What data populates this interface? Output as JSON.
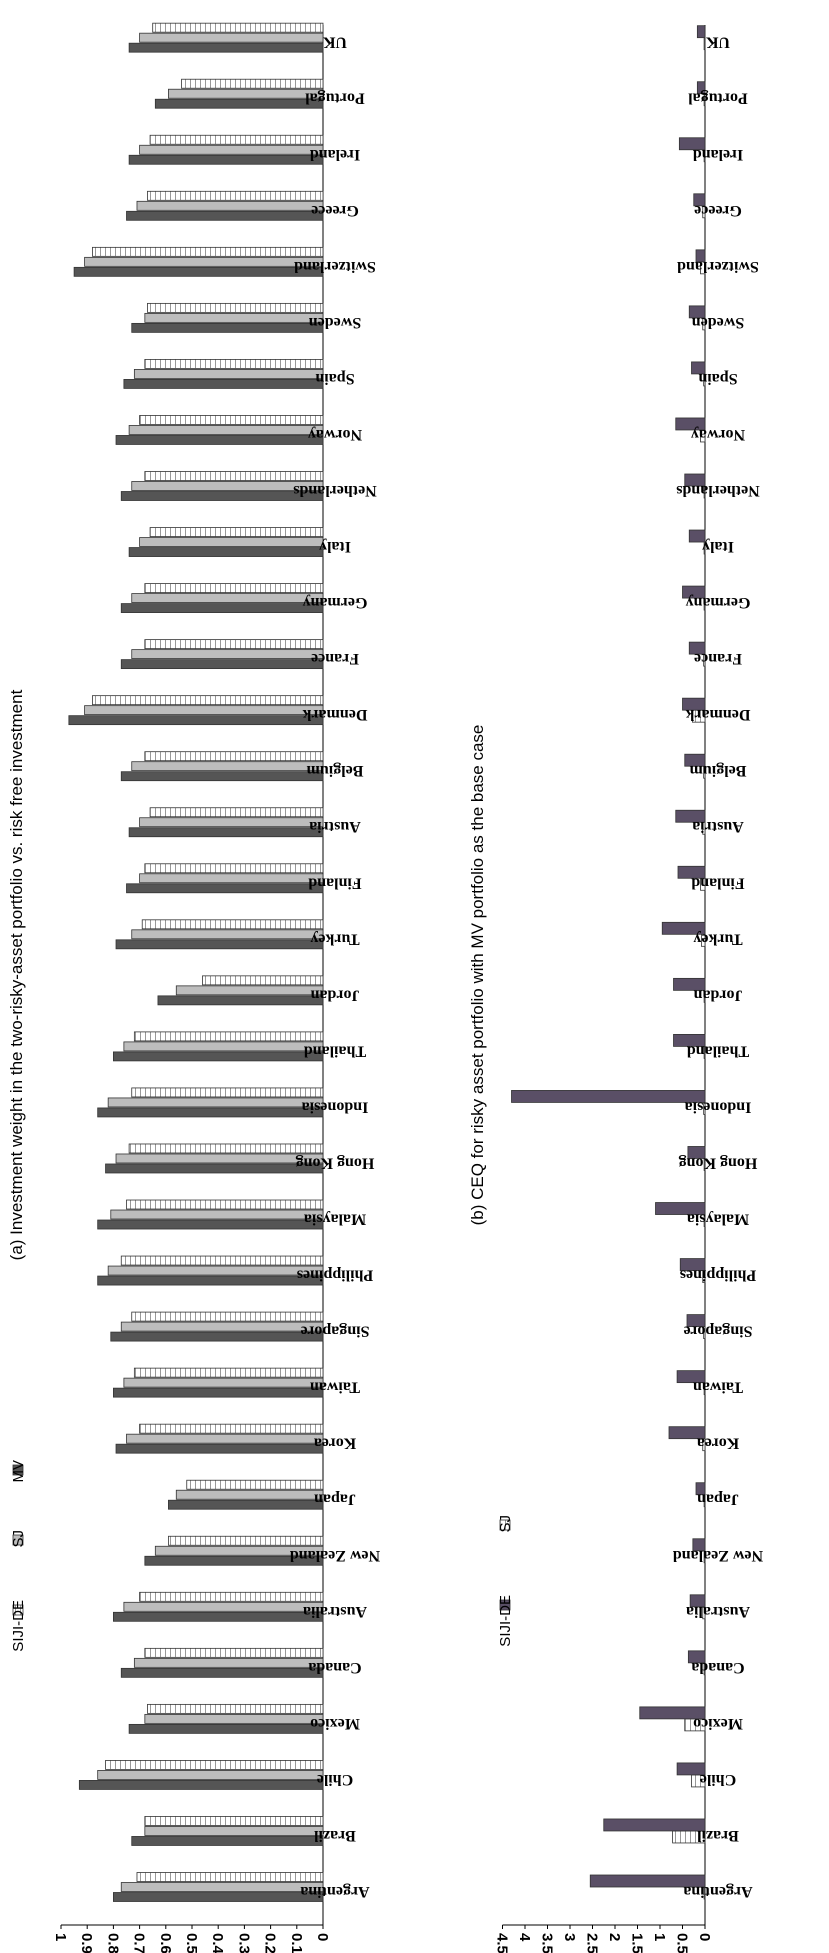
{
  "chart_data": [
    {
      "type": "bar",
      "orientation": "horizontal",
      "rotation": "figure rotated 90 degrees clockwise",
      "title": "(a) Investment weight in the two-risky-asset portfolio vs. risk free investment",
      "xlabel": "",
      "ylabel": "",
      "ylim": [
        0,
        1
      ],
      "yticks": [
        "0",
        "0.1",
        "0.2",
        "0.3",
        "0.4",
        "0.5",
        "0.6",
        "0.7",
        "0.8",
        "0.9",
        "1"
      ],
      "grid": false,
      "legend_position": "top-left",
      "categories": [
        "Argentina",
        "Brazil",
        "Chile",
        "Mexico",
        "Canada",
        "Australia",
        "New Zealand",
        "Japan",
        "Korea",
        "Taiwan",
        "Singapore",
        "Philippines",
        "Malaysia",
        "Hong Kong",
        "Indonesia",
        "Thailand",
        "Jordan",
        "Turkey",
        "Finland",
        "Austria",
        "Belgium",
        "Denmark",
        "France",
        "Germany",
        "Italy",
        "Netherlands",
        "Norway",
        "Spain",
        "Sweden",
        "Switzerland",
        "Greece",
        "Ireland",
        "Portugal",
        "UK"
      ],
      "series": [
        {
          "name": "MV",
          "color": "#555555",
          "pattern": "solid",
          "values": [
            0.8,
            0.73,
            0.93,
            0.74,
            0.77,
            0.8,
            0.68,
            0.59,
            0.79,
            0.8,
            0.81,
            0.86,
            0.86,
            0.83,
            0.86,
            0.8,
            0.63,
            0.79,
            0.75,
            0.74,
            0.77,
            0.97,
            0.77,
            0.77,
            0.74,
            0.77,
            0.79,
            0.76,
            0.73,
            0.95,
            0.75,
            0.74,
            0.64,
            0.74
          ]
        },
        {
          "name": "SJ",
          "color": "#bdbdbd",
          "pattern": "solid",
          "values": [
            0.77,
            0.68,
            0.86,
            0.68,
            0.72,
            0.76,
            0.64,
            0.56,
            0.75,
            0.76,
            0.77,
            0.82,
            0.81,
            0.79,
            0.82,
            0.76,
            0.56,
            0.73,
            0.7,
            0.7,
            0.73,
            0.91,
            0.73,
            0.73,
            0.7,
            0.73,
            0.74,
            0.72,
            0.68,
            0.91,
            0.71,
            0.7,
            0.59,
            0.7
          ]
        },
        {
          "name": "SIJI-DE",
          "color": "#ffffff",
          "pattern": "hatched",
          "values": [
            0.71,
            0.68,
            0.83,
            0.67,
            0.68,
            0.7,
            0.59,
            0.52,
            0.7,
            0.72,
            0.73,
            0.77,
            0.75,
            0.74,
            0.73,
            0.72,
            0.46,
            0.69,
            0.68,
            0.66,
            0.68,
            0.88,
            0.68,
            0.68,
            0.66,
            0.68,
            0.7,
            0.68,
            0.67,
            0.88,
            0.67,
            0.66,
            0.54,
            0.65
          ]
        }
      ]
    },
    {
      "type": "bar",
      "orientation": "horizontal",
      "rotation": "figure rotated 90 degrees clockwise",
      "title": "(b) CEQ for risky asset portfolio with MV portfolio as the base case",
      "xlabel": "",
      "ylabel": "",
      "ylim": [
        0,
        4.5
      ],
      "yticks": [
        "0",
        "0.5",
        "1",
        "1.5",
        "2",
        "2.5",
        "3",
        "3.5",
        "4",
        "4.5"
      ],
      "grid": false,
      "legend_position": "top-left",
      "categories": [
        "Argentina",
        "Brazil",
        "Chile",
        "Mexico",
        "Canada",
        "Australia",
        "New Zealand",
        "Japan",
        "Korea",
        "Taiwan",
        "Singapore",
        "Philippines",
        "Malaysia",
        "Hong Kong",
        "Indonesia",
        "Thailand",
        "Jordan",
        "Turkey",
        "Finland",
        "Austria",
        "Belgium",
        "Denmark",
        "France",
        "Germany",
        "Italy",
        "Netherlands",
        "Norway",
        "Spain",
        "Sweden",
        "Switzerland",
        "Greece",
        "Ireland",
        "Portugal",
        "UK"
      ],
      "series": [
        {
          "name": "SJ",
          "color": "#ffffff",
          "pattern": "hatched",
          "values": [
            0.02,
            0.72,
            0.3,
            0.45,
            0.02,
            0.05,
            0.02,
            0.02,
            0.05,
            0.02,
            0.03,
            0.05,
            0.02,
            0.02,
            0.03,
            0.02,
            0.02,
            0.08,
            0.1,
            0.05,
            0.03,
            0.28,
            0.03,
            0.02,
            0.02,
            0.02,
            0.1,
            0.03,
            0.05,
            0.1,
            0.05,
            0.02,
            0.02,
            0.02
          ]
        },
        {
          "name": "SIJI-DE",
          "color": "#5a4f66",
          "pattern": "solid",
          "values": [
            2.55,
            2.25,
            0.62,
            1.45,
            0.37,
            0.33,
            0.27,
            0.2,
            0.8,
            0.62,
            0.4,
            0.55,
            1.1,
            0.38,
            4.3,
            0.7,
            0.7,
            0.95,
            0.6,
            0.65,
            0.45,
            0.5,
            0.35,
            0.5,
            0.35,
            0.45,
            0.65,
            0.3,
            0.35,
            0.2,
            0.25,
            0.57,
            0.17,
            0.17
          ]
        }
      ]
    }
  ]
}
